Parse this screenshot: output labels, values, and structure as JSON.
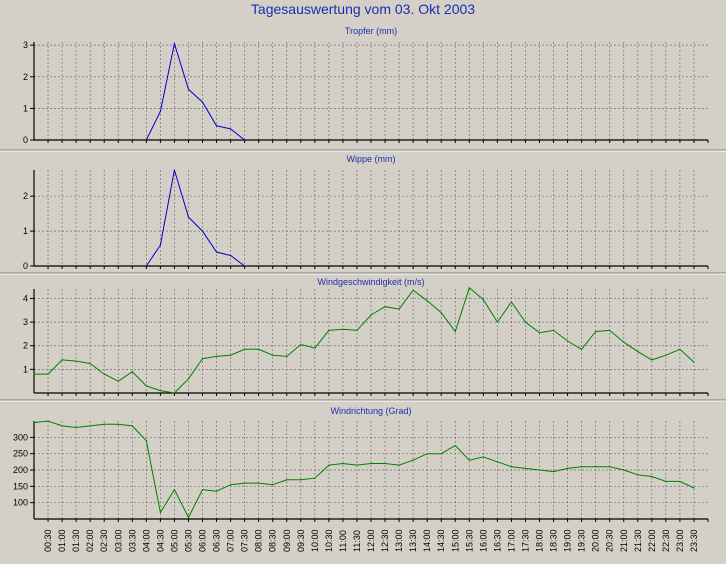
{
  "title": "Tagesauswertung vom 03. Okt 2003",
  "chart_data": [
    {
      "type": "line",
      "title": "Tropfer (mm)",
      "ylim": [
        0,
        3.1
      ],
      "yticks": [
        0,
        1,
        2,
        3
      ],
      "grid": true,
      "color": "#0000c8",
      "x": [
        "04:00",
        "04:30",
        "05:00",
        "05:30",
        "06:00",
        "06:30",
        "07:00",
        "07:30"
      ],
      "values": [
        0,
        0.9,
        3.05,
        1.6,
        1.2,
        0.45,
        0.35,
        0
      ]
    },
    {
      "type": "line",
      "title": "Wippe (mm)",
      "ylim": [
        0,
        2.75
      ],
      "yticks": [
        0,
        1,
        2
      ],
      "grid": true,
      "color": "#0000c8",
      "x": [
        "04:00",
        "04:30",
        "05:00",
        "05:30",
        "06:00",
        "06:30",
        "07:00",
        "07:30"
      ],
      "values": [
        0,
        0.6,
        2.75,
        1.4,
        1.0,
        0.4,
        0.3,
        0
      ]
    },
    {
      "type": "line",
      "title": "Windgeschwindigkeit (m/s)",
      "ylim": [
        0,
        4.4
      ],
      "yticks": [
        1,
        2,
        3,
        4
      ],
      "grid": true,
      "color": "#008000",
      "x": [
        "00:00",
        "00:30",
        "01:00",
        "01:30",
        "02:00",
        "02:30",
        "03:00",
        "03:30",
        "04:00",
        "04:30",
        "05:00",
        "05:30",
        "06:00",
        "06:30",
        "07:00",
        "07:30",
        "08:00",
        "08:30",
        "09:00",
        "09:30",
        "10:00",
        "10:30",
        "11:00",
        "11:30",
        "12:00",
        "12:30",
        "13:00",
        "13:30",
        "14:00",
        "14:30",
        "15:00",
        "15:30",
        "16:00",
        "16:30",
        "17:00",
        "17:30",
        "18:00",
        "18:30",
        "19:00",
        "19:30",
        "20:00",
        "20:30",
        "21:00",
        "21:30",
        "22:00",
        "22:30",
        "23:00",
        "23:30"
      ],
      "values": [
        0.8,
        0.8,
        1.4,
        1.35,
        1.25,
        0.8,
        0.5,
        0.9,
        0.3,
        0.1,
        0,
        0.6,
        1.45,
        1.55,
        1.6,
        1.85,
        1.85,
        1.6,
        1.55,
        2.05,
        1.9,
        2.65,
        2.7,
        2.65,
        3.3,
        3.65,
        3.55,
        4.35,
        3.9,
        3.4,
        2.6,
        4.45,
        3.95,
        3.0,
        3.85,
        3.0,
        2.55,
        2.65,
        2.2,
        1.85,
        2.6,
        2.65,
        2.15,
        1.75,
        1.4,
        1.6,
        1.85,
        1.3
      ]
    },
    {
      "type": "line",
      "title": "Windrichtung (Grad)",
      "ylim": [
        50,
        350
      ],
      "yticks": [
        100,
        150,
        200,
        250,
        300
      ],
      "grid": true,
      "color": "#008000",
      "x": [
        "00:00",
        "00:30",
        "01:00",
        "01:30",
        "02:00",
        "02:30",
        "03:00",
        "03:30",
        "04:00",
        "04:30",
        "05:00",
        "05:30",
        "06:00",
        "06:30",
        "07:00",
        "07:30",
        "08:00",
        "08:30",
        "09:00",
        "09:30",
        "10:00",
        "10:30",
        "11:00",
        "11:30",
        "12:00",
        "12:30",
        "13:00",
        "13:30",
        "14:00",
        "14:30",
        "15:00",
        "15:30",
        "16:00",
        "16:30",
        "17:00",
        "17:30",
        "18:00",
        "18:30",
        "19:00",
        "19:30",
        "20:00",
        "20:30",
        "21:00",
        "21:30",
        "22:00",
        "22:30",
        "23:00",
        "23:30"
      ],
      "values": [
        345,
        350,
        335,
        330,
        335,
        340,
        340,
        335,
        290,
        70,
        140,
        55,
        140,
        135,
        155,
        160,
        160,
        155,
        170,
        170,
        175,
        215,
        220,
        215,
        220,
        220,
        215,
        230,
        250,
        250,
        275,
        230,
        240,
        225,
        210,
        205,
        200,
        195,
        205,
        210,
        210,
        210,
        200,
        185,
        180,
        165,
        165,
        145
      ]
    }
  ],
  "xticks": [
    "00:30",
    "01:00",
    "01:30",
    "02:00",
    "02:30",
    "03:00",
    "03:30",
    "04:00",
    "04:30",
    "05:00",
    "05:30",
    "06:00",
    "06:30",
    "07:00",
    "07:30",
    "08:00",
    "08:30",
    "09:00",
    "09:30",
    "10:00",
    "10:30",
    "11:00",
    "11:30",
    "12:00",
    "12:30",
    "13:00",
    "13:30",
    "14:00",
    "14:30",
    "15:00",
    "15:30",
    "16:00",
    "16:30",
    "17:00",
    "17:30",
    "18:00",
    "18:30",
    "19:00",
    "19:30",
    "20:00",
    "20:30",
    "21:00",
    "21:30",
    "22:00",
    "22:30",
    "23:00",
    "23:30"
  ]
}
